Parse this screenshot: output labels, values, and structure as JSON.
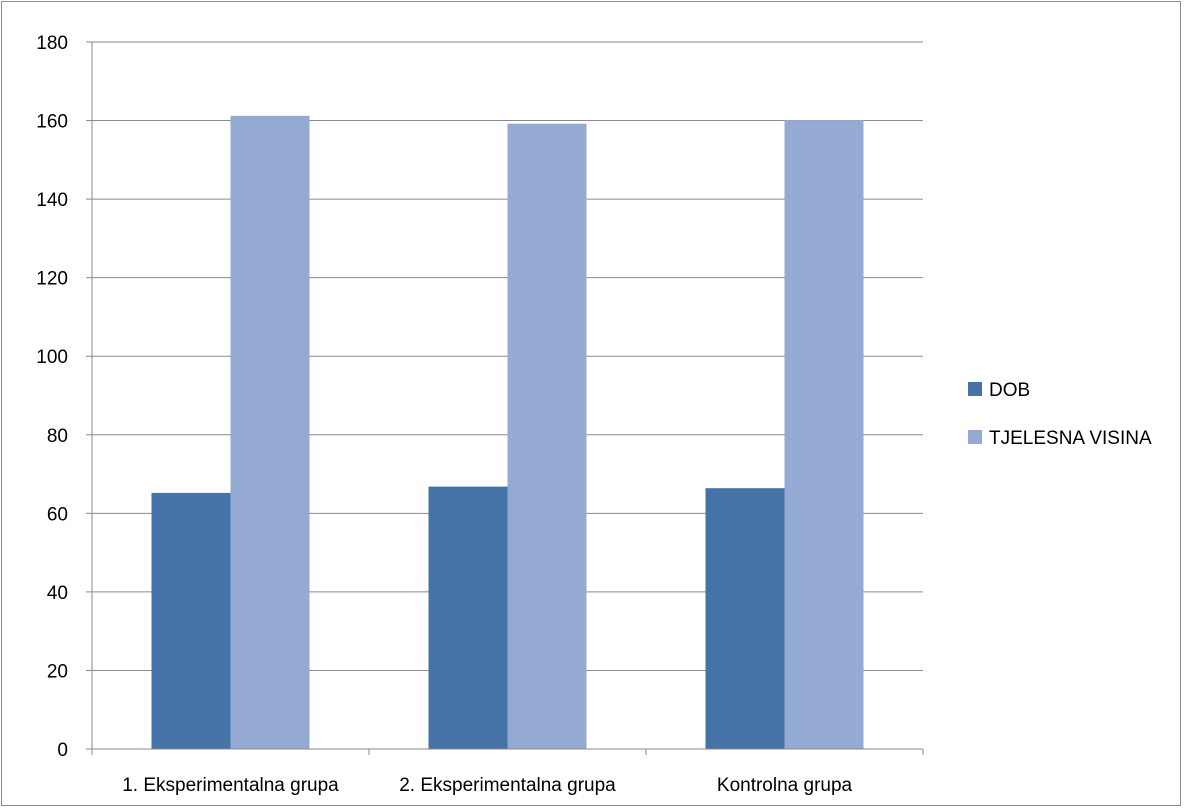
{
  "chart_data": {
    "type": "bar",
    "categories": [
      "1. Eksperimentalna grupa",
      "2. Eksperimentalna grupa",
      "Kontrolna grupa"
    ],
    "series": [
      {
        "name": "DOB",
        "values": [
          65.2,
          66.8,
          66.4
        ],
        "color": "#4572a7"
      },
      {
        "name": "TJELESNA VISINA",
        "values": [
          161.2,
          159.2,
          160.1
        ],
        "color": "#95aad3"
      }
    ],
    "ylim": [
      0,
      180
    ],
    "yticks": [
      0,
      20,
      40,
      60,
      80,
      100,
      120,
      140,
      160,
      180
    ],
    "title": "",
    "xlabel": "",
    "ylabel": "",
    "grid": true,
    "legend_position": "right"
  }
}
